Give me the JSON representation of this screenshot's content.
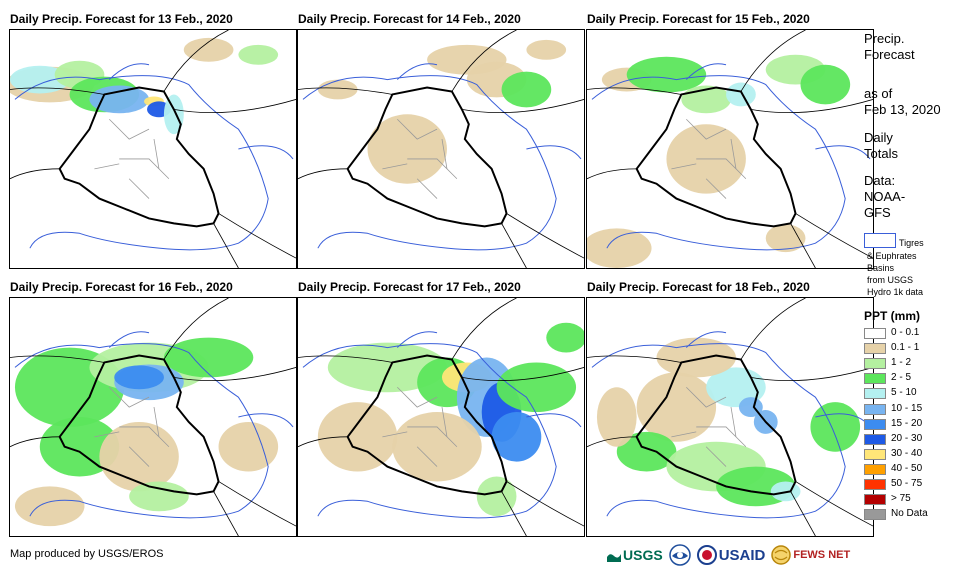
{
  "panels": [
    {
      "title": "Daily Precip. Forecast for 13 Feb., 2020",
      "day": 13
    },
    {
      "title": "Daily Precip. Forecast for 14 Feb., 2020",
      "day": 14
    },
    {
      "title": "Daily Precip. Forecast for 15 Feb., 2020",
      "day": 15
    },
    {
      "title": "Daily Precip. Forecast for 16 Feb., 2020",
      "day": 16
    },
    {
      "title": "Daily Precip. Forecast for 17 Feb., 2020",
      "day": 17
    },
    {
      "title": "Daily Precip. Forecast for 18 Feb., 2020",
      "day": 18
    }
  ],
  "side": {
    "title_line1": "Precip.",
    "title_line2": "Forecast",
    "asof_line1": "as of",
    "asof_line2": "Feb 13, 2020",
    "daily_line1": "Daily",
    "daily_line2": "Totals",
    "data_line1": "Data:",
    "data_line2": "NOAA-",
    "data_line3": "GFS"
  },
  "basin_legend": {
    "line1": "Tigres",
    "line2": "& Euphrates",
    "line3": "Basins",
    "line4": "from USGS",
    "line5": "Hydro 1k data"
  },
  "legend": {
    "title": "PPT (mm)",
    "items": [
      {
        "label": "0 - 0.1",
        "color": "#ffffff"
      },
      {
        "label": "0.1 - 1",
        "color": "#e6d2a9"
      },
      {
        "label": "1 - 2",
        "color": "#b4f0a0"
      },
      {
        "label": "2 - 5",
        "color": "#5ce65c"
      },
      {
        "label": "5 - 10",
        "color": "#b4f0f0"
      },
      {
        "label": "10 - 15",
        "color": "#78b4f0"
      },
      {
        "label": "15 - 20",
        "color": "#3c8cf0"
      },
      {
        "label": "20 - 30",
        "color": "#1e5ae6"
      },
      {
        "label": "30 - 40",
        "color": "#ffe678"
      },
      {
        "label": "40 - 50",
        "color": "#ffa000"
      },
      {
        "label": "50 - 75",
        "color": "#ff3200"
      },
      {
        "label": "> 75",
        "color": "#b40000"
      },
      {
        "label": "No Data",
        "color": "#999999"
      }
    ]
  },
  "footer": {
    "credit": "Map produced by USGS/EROS"
  },
  "logos": {
    "usgs": "USGS",
    "usaid": "USAID",
    "fews": "FEWS NET"
  }
}
